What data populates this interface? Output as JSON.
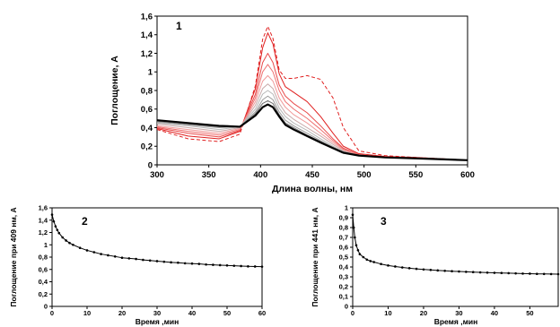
{
  "chart_data": [
    {
      "type": "line",
      "panel_label": "1",
      "xlabel": "Длина волны, нм",
      "ylabel": "Поглощение, А",
      "xlim": [
        300,
        600
      ],
      "ylim": [
        0,
        1.6
      ],
      "x_ticks": [
        300,
        350,
        400,
        450,
        500,
        550,
        600
      ],
      "y_ticks": [
        "0",
        "0,2",
        "0,4",
        "0,6",
        "0,8",
        "1",
        "1,2",
        "1,4",
        "1,6"
      ],
      "grid": false,
      "colors": {
        "initial": "#e02020",
        "early": "#e84a4a",
        "late": "#000000",
        "gray_mid": "#9a9a9a"
      },
      "series": [
        {
          "style": "dashed",
          "color": "#e02020",
          "x": [
            300,
            330,
            360,
            380,
            395,
            402,
            407,
            412,
            418,
            424,
            432,
            445,
            458,
            470,
            480,
            495,
            520,
            550,
            600
          ],
          "y": [
            0.38,
            0.28,
            0.25,
            0.33,
            0.85,
            1.35,
            1.49,
            1.36,
            1.02,
            0.93,
            0.93,
            0.96,
            0.92,
            0.72,
            0.4,
            0.15,
            0.1,
            0.08,
            0.05
          ]
        },
        {
          "style": "solid",
          "color": "#e02020",
          "x": [
            300,
            330,
            360,
            380,
            395,
            402,
            407,
            412,
            418,
            424,
            432,
            445,
            458,
            470,
            480,
            495,
            520,
            550,
            600
          ],
          "y": [
            0.39,
            0.31,
            0.28,
            0.36,
            0.82,
            1.26,
            1.42,
            1.3,
            0.98,
            0.84,
            0.78,
            0.68,
            0.52,
            0.34,
            0.2,
            0.12,
            0.09,
            0.08,
            0.05
          ]
        },
        {
          "style": "solid",
          "color": "#e84a4a",
          "x": [
            300,
            330,
            360,
            380,
            395,
            402,
            407,
            412,
            418,
            424,
            432,
            445,
            458,
            470,
            480,
            495,
            520,
            550,
            600
          ],
          "y": [
            0.4,
            0.34,
            0.3,
            0.37,
            0.76,
            1.1,
            1.2,
            1.1,
            0.86,
            0.74,
            0.66,
            0.56,
            0.42,
            0.28,
            0.18,
            0.11,
            0.08,
            0.07,
            0.05
          ]
        },
        {
          "style": "solid",
          "color": "#ee7070",
          "x": [
            300,
            330,
            360,
            380,
            395,
            402,
            407,
            412,
            418,
            424,
            432,
            445,
            458,
            470,
            480,
            495,
            520,
            550,
            600
          ],
          "y": [
            0.41,
            0.36,
            0.32,
            0.38,
            0.72,
            1.0,
            1.08,
            1.0,
            0.8,
            0.68,
            0.6,
            0.5,
            0.38,
            0.26,
            0.17,
            0.11,
            0.08,
            0.07,
            0.05
          ]
        },
        {
          "style": "solid",
          "color": "#f09a9a",
          "x": [
            300,
            330,
            360,
            380,
            395,
            402,
            407,
            412,
            418,
            424,
            432,
            445,
            458,
            470,
            480,
            495,
            520,
            550,
            600
          ],
          "y": [
            0.42,
            0.38,
            0.34,
            0.39,
            0.68,
            0.9,
            0.96,
            0.9,
            0.72,
            0.62,
            0.54,
            0.45,
            0.34,
            0.24,
            0.16,
            0.1,
            0.08,
            0.07,
            0.05
          ]
        },
        {
          "style": "solid",
          "color": "#c8a8a8",
          "x": [
            300,
            330,
            360,
            380,
            395,
            402,
            407,
            412,
            418,
            424,
            432,
            445,
            458,
            470,
            480,
            495,
            520,
            550,
            600
          ],
          "y": [
            0.44,
            0.4,
            0.36,
            0.4,
            0.64,
            0.82,
            0.87,
            0.82,
            0.66,
            0.56,
            0.49,
            0.4,
            0.31,
            0.22,
            0.15,
            0.1,
            0.08,
            0.07,
            0.05
          ]
        },
        {
          "style": "solid",
          "color": "#b8b8b8",
          "x": [
            300,
            330,
            360,
            380,
            395,
            402,
            407,
            412,
            418,
            424,
            432,
            445,
            458,
            470,
            480,
            495,
            520,
            550,
            600
          ],
          "y": [
            0.45,
            0.42,
            0.38,
            0.41,
            0.6,
            0.76,
            0.8,
            0.76,
            0.61,
            0.52,
            0.45,
            0.37,
            0.28,
            0.2,
            0.14,
            0.1,
            0.08,
            0.07,
            0.05
          ]
        },
        {
          "style": "solid",
          "color": "#9a9a9a",
          "x": [
            300,
            330,
            360,
            380,
            395,
            402,
            407,
            412,
            418,
            424,
            432,
            445,
            458,
            470,
            480,
            495,
            520,
            550,
            600
          ],
          "y": [
            0.46,
            0.43,
            0.4,
            0.41,
            0.57,
            0.7,
            0.74,
            0.7,
            0.57,
            0.48,
            0.42,
            0.34,
            0.26,
            0.19,
            0.14,
            0.1,
            0.08,
            0.07,
            0.05
          ]
        },
        {
          "style": "solid",
          "color": "#707070",
          "x": [
            300,
            330,
            360,
            380,
            395,
            402,
            407,
            412,
            418,
            424,
            432,
            445,
            458,
            470,
            480,
            495,
            520,
            550,
            600
          ],
          "y": [
            0.47,
            0.44,
            0.41,
            0.41,
            0.55,
            0.66,
            0.69,
            0.66,
            0.54,
            0.45,
            0.4,
            0.32,
            0.25,
            0.18,
            0.13,
            0.1,
            0.08,
            0.07,
            0.05
          ]
        },
        {
          "style": "solid",
          "color": "#000000",
          "x": [
            300,
            330,
            360,
            380,
            395,
            402,
            407,
            412,
            418,
            424,
            432,
            445,
            458,
            470,
            480,
            495,
            520,
            550,
            600
          ],
          "y": [
            0.48,
            0.45,
            0.42,
            0.41,
            0.53,
            0.62,
            0.65,
            0.62,
            0.52,
            0.43,
            0.38,
            0.31,
            0.24,
            0.18,
            0.13,
            0.1,
            0.08,
            0.07,
            0.05
          ]
        }
      ]
    },
    {
      "type": "line",
      "panel_label": "2",
      "xlabel": "Время ,мин",
      "ylabel": "Поглощение при 409 нм, А",
      "xlim": [
        0,
        60
      ],
      "ylim": [
        0,
        1.6
      ],
      "x_ticks": [
        0,
        10,
        20,
        30,
        40,
        50,
        60
      ],
      "y_ticks": [
        "0",
        "0,2",
        "0,4",
        "0,6",
        "0,8",
        "1",
        "1,2",
        "1,4",
        "1,6"
      ],
      "grid": false,
      "series": [
        {
          "color": "#000000",
          "markers": true,
          "x": [
            0,
            0.5,
            1,
            1.5,
            2,
            3,
            4,
            5,
            6,
            8,
            10,
            12,
            14,
            16,
            18,
            20,
            22,
            24,
            26,
            28,
            30,
            32,
            34,
            36,
            38,
            40,
            42,
            44,
            46,
            48,
            50,
            52,
            54,
            56,
            58,
            60
          ],
          "y": [
            1.49,
            1.38,
            1.3,
            1.24,
            1.19,
            1.12,
            1.07,
            1.03,
            1.0,
            0.95,
            0.91,
            0.88,
            0.85,
            0.83,
            0.81,
            0.79,
            0.78,
            0.77,
            0.755,
            0.745,
            0.735,
            0.725,
            0.715,
            0.71,
            0.7,
            0.695,
            0.69,
            0.68,
            0.675,
            0.67,
            0.665,
            0.66,
            0.655,
            0.65,
            0.648,
            0.645
          ]
        }
      ]
    },
    {
      "type": "line",
      "panel_label": "3",
      "xlabel": "Время ,мин",
      "ylabel": "Поглощение при 441 нм, А",
      "xlim": [
        0,
        58
      ],
      "ylim": [
        0,
        1
      ],
      "x_ticks": [
        0,
        10,
        20,
        30,
        40,
        50
      ],
      "y_ticks": [
        "0",
        "0,1",
        "0,2",
        "0,3",
        "0,4",
        "0,5",
        "0,6",
        "0,7",
        "0,8",
        "0,9",
        "1"
      ],
      "grid": false,
      "series": [
        {
          "color": "#000000",
          "markers": true,
          "x": [
            0,
            0.3,
            0.6,
            1,
            1.5,
            2,
            3,
            4,
            5,
            6,
            8,
            10,
            12,
            14,
            16,
            18,
            20,
            22,
            24,
            26,
            28,
            30,
            32,
            34,
            36,
            38,
            40,
            42,
            44,
            46,
            48,
            50,
            52,
            54,
            56,
            58
          ],
          "y": [
            0.93,
            0.8,
            0.7,
            0.62,
            0.57,
            0.53,
            0.5,
            0.475,
            0.46,
            0.45,
            0.43,
            0.415,
            0.405,
            0.395,
            0.388,
            0.381,
            0.375,
            0.37,
            0.365,
            0.361,
            0.357,
            0.354,
            0.351,
            0.348,
            0.345,
            0.343,
            0.341,
            0.339,
            0.337,
            0.335,
            0.333,
            0.332,
            0.33,
            0.329,
            0.328,
            0.327
          ]
        }
      ]
    }
  ]
}
